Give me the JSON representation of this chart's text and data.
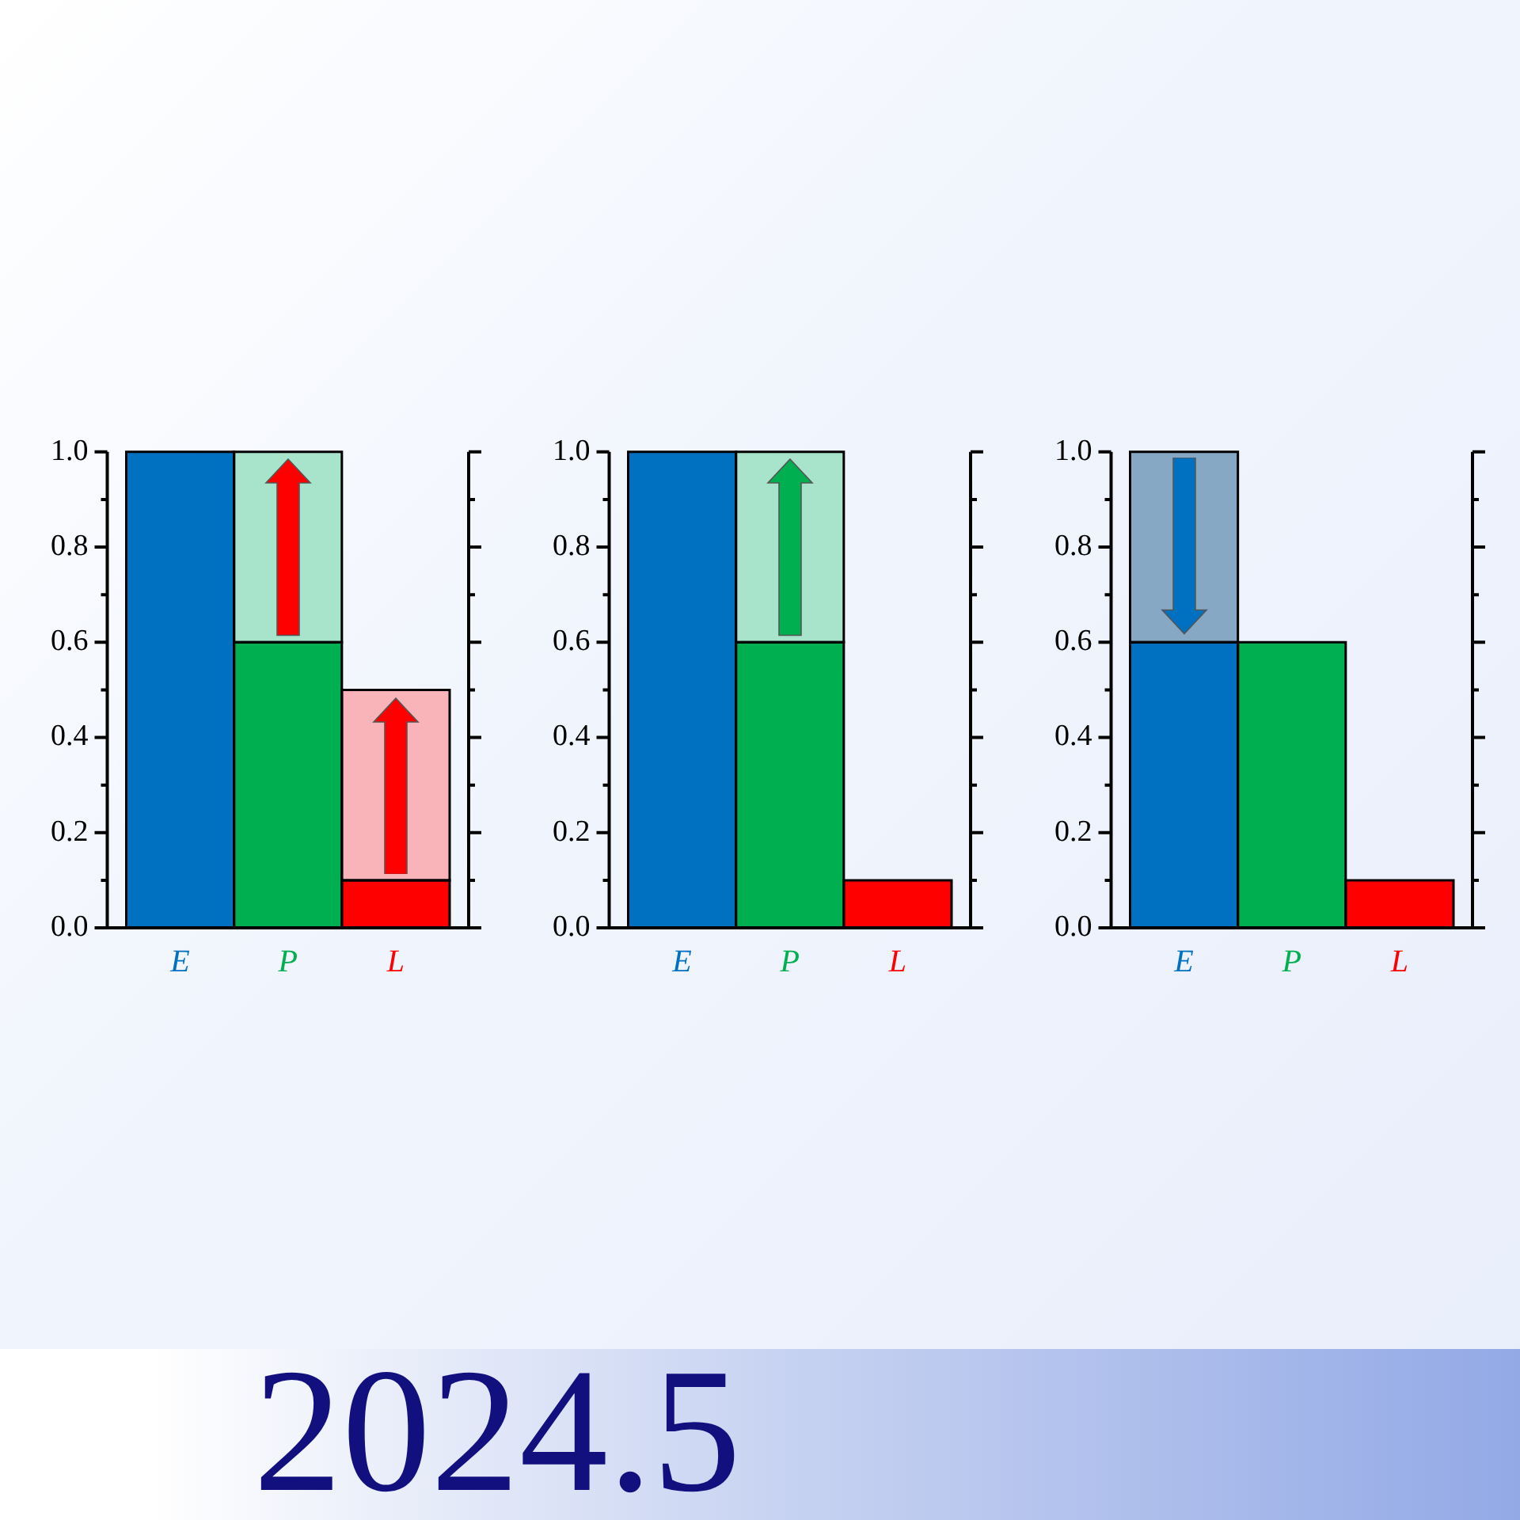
{
  "chart_data": [
    {
      "type": "bar",
      "stacked": true,
      "categories": [
        "E",
        "P",
        "L"
      ],
      "series": [
        {
          "colors": [
            "#0070c0",
            "#00b050",
            "#ff0000"
          ],
          "values": [
            1.0,
            0.6,
            0.1
          ]
        },
        {
          "colors": [
            "#0070c0",
            "#a8e4cc",
            "#f8b4b8"
          ],
          "values": [
            null,
            0.4,
            0.4
          ]
        }
      ],
      "ylim": [
        0,
        1
      ],
      "yticks": [
        {
          "value": 0,
          "label": "0.0"
        },
        {
          "value": 0.1,
          "label": null
        },
        0.2,
        {
          "value": 0.3,
          "label": null
        },
        0.4,
        {
          "value": 0.5,
          "label": null
        },
        0.6,
        {
          "value": 0.7,
          "label": null
        },
        0.8,
        {
          "value": 0.9,
          "label": null
        },
        {
          "value": 1,
          "label": "1.0"
        }
      ],
      "grid": false,
      "legend": false
    },
    {
      "type": "bar",
      "stacked": true,
      "categories": [
        "E",
        "P",
        "L"
      ],
      "series": [
        {
          "colors": [
            "#0070c0",
            "#00b050",
            "#ff0000"
          ],
          "values": [
            1.0,
            0.6,
            0.1
          ]
        },
        {
          "colors": [
            "#0070c0",
            "#a8e4cc",
            "#ff0000"
          ],
          "values": [
            null,
            0.4,
            null
          ]
        }
      ],
      "ylim": [
        0,
        1
      ],
      "yticks": [
        {
          "value": 0,
          "label": "0.0"
        },
        {
          "value": 0.1,
          "label": null
        },
        0.2,
        {
          "value": 0.3,
          "label": null
        },
        0.4,
        {
          "value": 0.5,
          "label": null
        },
        0.6,
        {
          "value": 0.7,
          "label": null
        },
        0.8,
        {
          "value": 0.9,
          "label": null
        },
        {
          "value": 1,
          "label": "1.0"
        }
      ],
      "grid": false,
      "legend": false
    },
    {
      "type": "bar",
      "stacked": true,
      "categories": [
        "E",
        "P",
        "L"
      ],
      "series": [
        {
          "colors": [
            "#0070c0",
            "#00b050",
            "#ff0000"
          ],
          "values": [
            0.6,
            0.6,
            0.1
          ]
        },
        {
          "colors": [
            "#86a8c4",
            "#00b050",
            "#ff0000"
          ],
          "values": [
            0.4,
            null,
            null
          ]
        }
      ],
      "ylim": [
        0,
        1
      ],
      "yticks": [
        {
          "value": 0,
          "label": "0.0"
        },
        {
          "value": 0.1,
          "label": null
        },
        0.2,
        {
          "value": 0.3,
          "label": null
        },
        0.4,
        {
          "value": 0.5,
          "label": null
        },
        0.6,
        {
          "value": 0.7,
          "label": null
        },
        0.8,
        {
          "value": 0.9,
          "label": null
        },
        {
          "value": 1,
          "label": "1.0"
        }
      ],
      "grid": false,
      "legend": false,
      "annotations": [
        "2024.5"
      ]
    }
  ]
}
